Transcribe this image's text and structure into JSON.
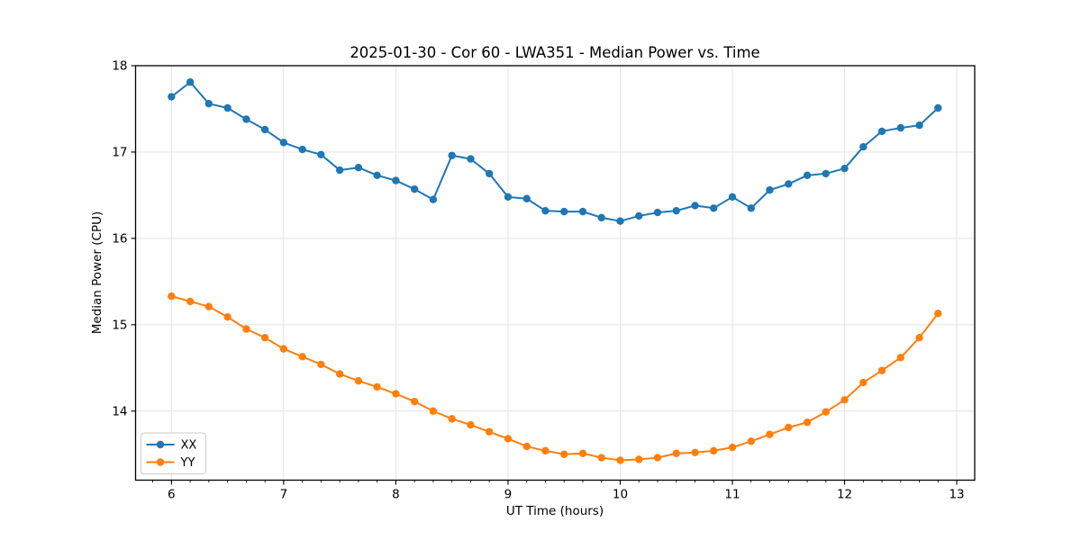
{
  "chart_data": {
    "type": "line",
    "title": "2025-01-30 - Cor 60 - LWA351 - Median Power vs. Time",
    "xlabel": "UT Time (hours)",
    "ylabel": "Median Power (CPU)",
    "xlim": [
      5.68,
      13.16
    ],
    "ylim": [
      13.2,
      18.0
    ],
    "x_major_ticks": [
      6,
      7,
      8,
      9,
      10,
      11,
      12,
      13
    ],
    "y_major_ticks": [
      14,
      15,
      16,
      17,
      18
    ],
    "x_minor_tick_step_hours": 0.1666667,
    "grid": true,
    "grid_color": "#e3e3e3",
    "spine_color": "#000000",
    "legend_position": "lower-left",
    "legend_border_color": "#cccccc",
    "x": [
      6.0,
      6.167,
      6.333,
      6.5,
      6.667,
      6.833,
      7.0,
      7.167,
      7.333,
      7.5,
      7.667,
      7.833,
      8.0,
      8.167,
      8.333,
      8.5,
      8.667,
      8.833,
      9.0,
      9.167,
      9.333,
      9.5,
      9.667,
      9.833,
      10.0,
      10.167,
      10.333,
      10.5,
      10.667,
      10.833,
      11.0,
      11.167,
      11.333,
      11.5,
      11.667,
      11.833,
      12.0,
      12.167,
      12.333,
      12.5,
      12.667,
      12.833
    ],
    "series": [
      {
        "name": "XX",
        "color": "#1f77b4",
        "values": [
          17.64,
          17.81,
          17.56,
          17.51,
          17.38,
          17.26,
          17.11,
          17.03,
          16.97,
          16.79,
          16.82,
          16.73,
          16.67,
          16.57,
          16.45,
          16.96,
          16.92,
          16.75,
          16.48,
          16.46,
          16.32,
          16.31,
          16.31,
          16.24,
          16.2,
          16.26,
          16.3,
          16.32,
          16.38,
          16.35,
          16.48,
          16.35,
          16.56,
          16.63,
          16.73,
          16.75,
          16.81,
          17.06,
          17.24,
          17.28,
          17.31,
          17.51
        ]
      },
      {
        "name": "YY",
        "color": "#ff7f0e",
        "values": [
          15.33,
          15.27,
          15.21,
          15.09,
          14.95,
          14.85,
          14.72,
          14.63,
          14.54,
          14.43,
          14.35,
          14.28,
          14.2,
          14.11,
          14.0,
          13.91,
          13.84,
          13.76,
          13.68,
          13.59,
          13.54,
          13.5,
          13.51,
          13.46,
          13.43,
          13.44,
          13.46,
          13.51,
          13.52,
          13.54,
          13.58,
          13.65,
          13.73,
          13.81,
          13.87,
          13.99,
          14.13,
          14.33,
          14.47,
          14.62,
          14.85,
          15.13
        ]
      }
    ]
  }
}
